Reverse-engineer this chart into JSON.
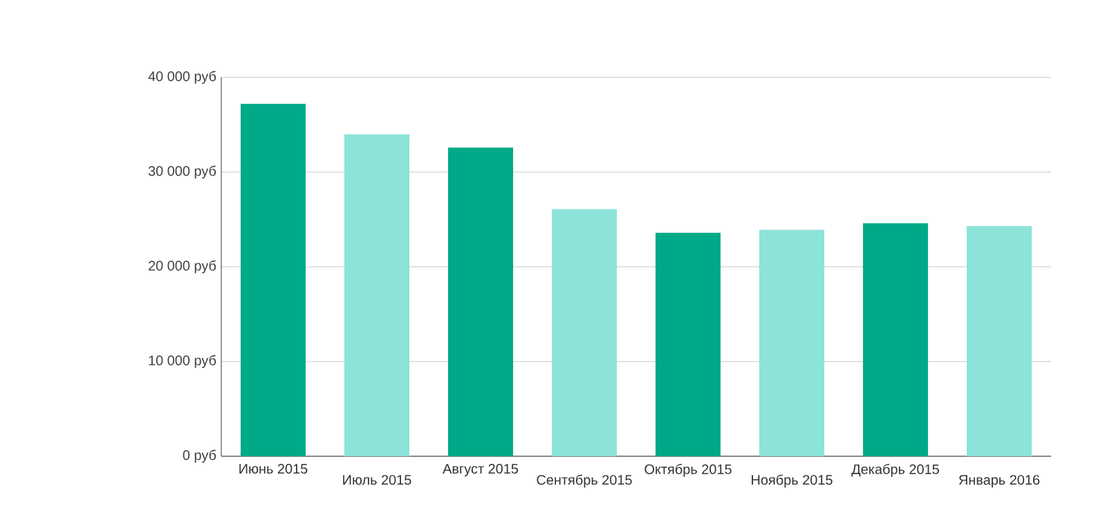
{
  "chart_data": {
    "type": "bar",
    "categories": [
      "Июнь 2015",
      "Июль 2015",
      "Август 2015",
      "Сентябрь 2015",
      "Октябрь 2015",
      "Ноябрь 2015",
      "Декабрь 2015",
      "Январь 2016"
    ],
    "values": [
      37200,
      34000,
      32600,
      26100,
      23600,
      23900,
      24600,
      24300
    ],
    "colors": [
      "#00a987",
      "#8ce3d8",
      "#00a987",
      "#8ce3d8",
      "#00a987",
      "#8ce3d8",
      "#00a987",
      "#8ce3d8"
    ],
    "ylim": [
      0,
      40000
    ],
    "yticks": [
      {
        "value": 0,
        "label": "0 руб"
      },
      {
        "value": 10000,
        "label": "10 000 руб"
      },
      {
        "value": 20000,
        "label": "20 000 руб"
      },
      {
        "value": 30000,
        "label": "30 000 руб"
      },
      {
        "value": 40000,
        "label": "40 000 руб"
      }
    ],
    "grid": "y"
  }
}
